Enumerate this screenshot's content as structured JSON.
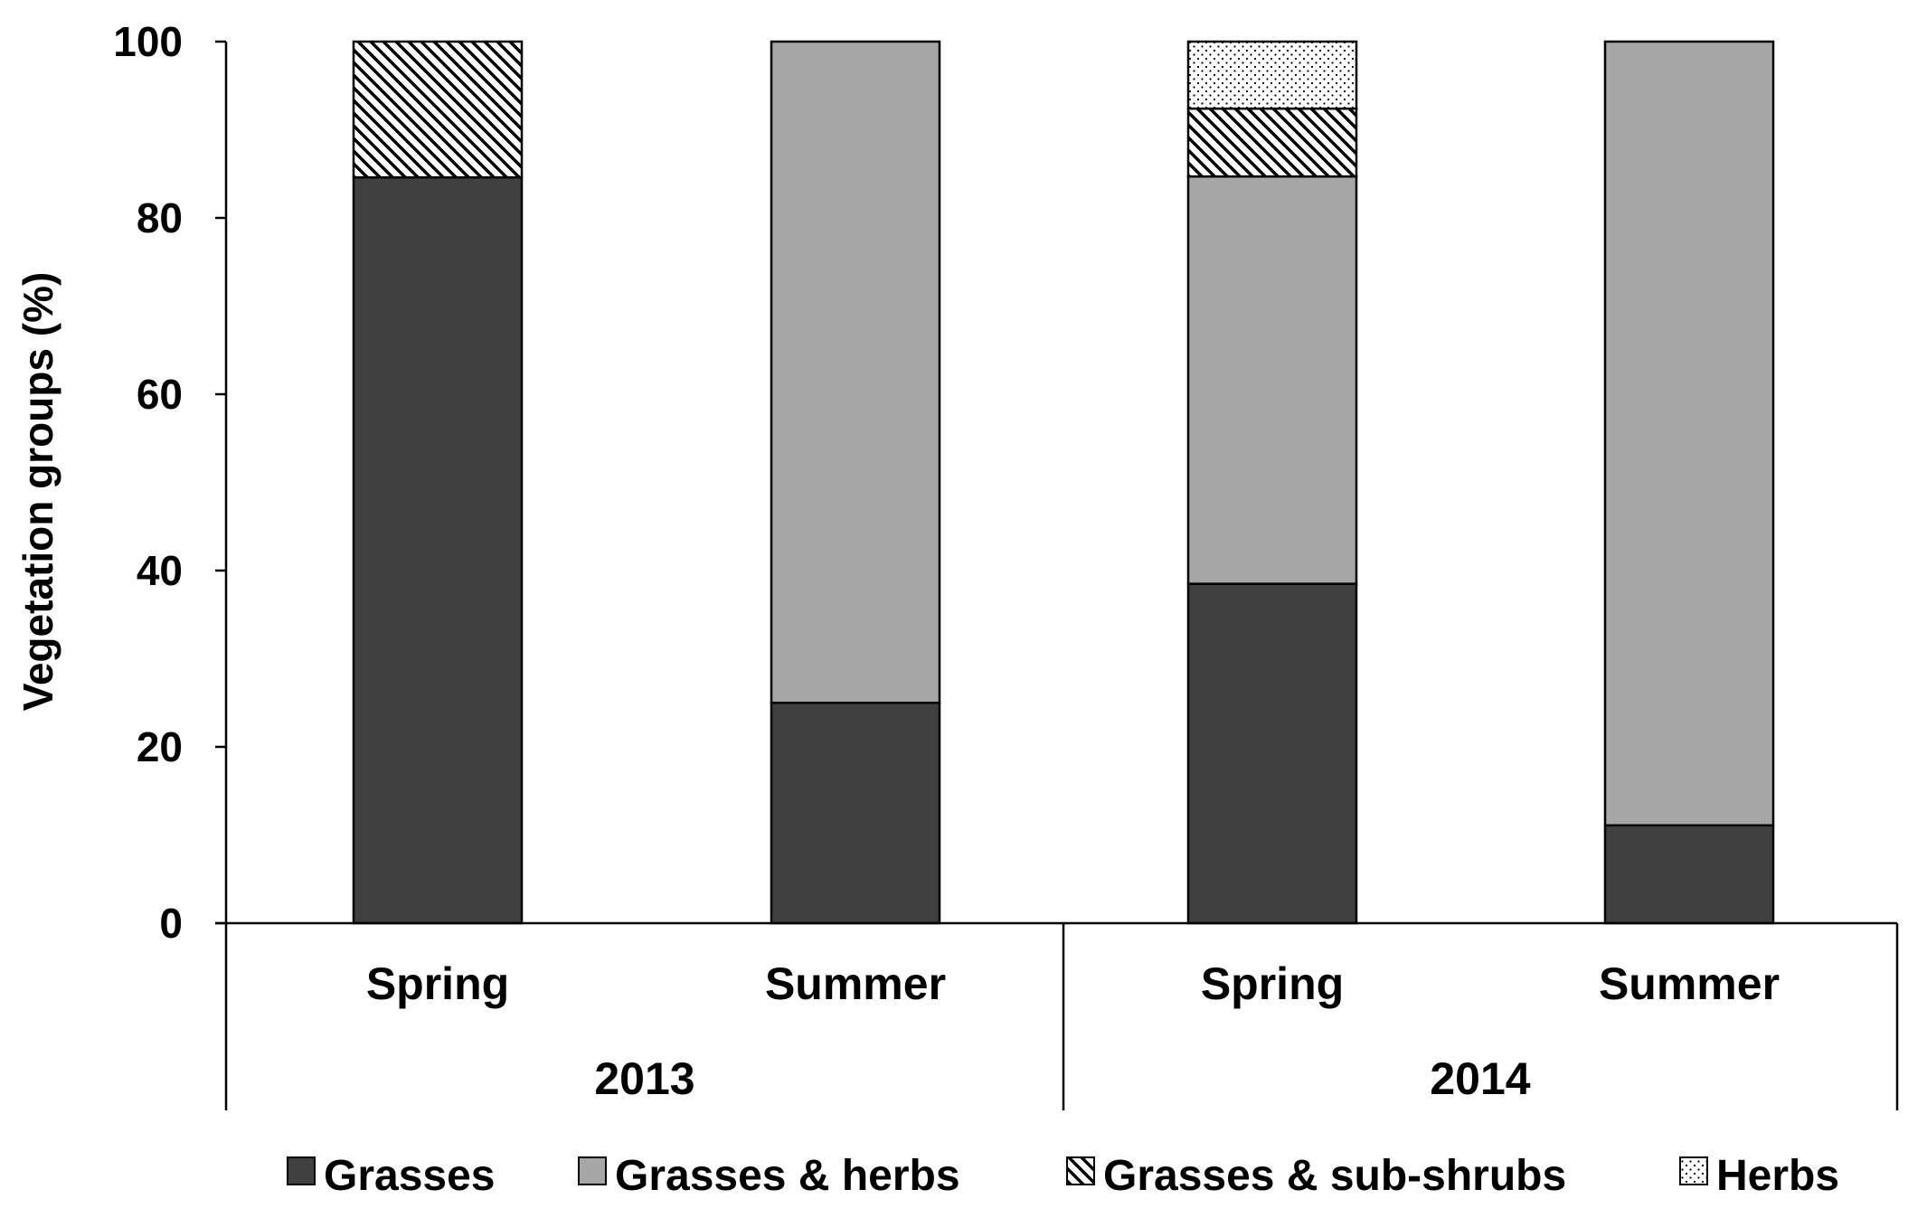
{
  "chart_data": {
    "type": "bar",
    "stacked": true,
    "ylabel": "Vegetation groups (%)",
    "ylim": [
      0,
      100
    ],
    "yticks": [
      0,
      20,
      40,
      60,
      80,
      100
    ],
    "grid": false,
    "legend_position": "bottom",
    "groups": [
      {
        "label": "2013",
        "categories": [
          "Spring",
          "Summer"
        ]
      },
      {
        "label": "2014",
        "categories": [
          "Spring",
          "Summer"
        ]
      }
    ],
    "categories": [
      "Spring",
      "Summer",
      "Spring",
      "Summer"
    ],
    "series": [
      {
        "name": "Grasses",
        "values": [
          84.6,
          25,
          38.5,
          11.1
        ],
        "color": "#404040",
        "pattern": "solid"
      },
      {
        "name": "Grasses & herbs",
        "values": [
          0,
          75,
          46.2,
          88.9
        ],
        "color": "#a6a6a6",
        "pattern": "solid"
      },
      {
        "name": "Grasses & sub-shrubs",
        "values": [
          15.4,
          0,
          7.7,
          0
        ],
        "color": "#000000",
        "pattern": "diagonal-hatch"
      },
      {
        "name": "Herbs",
        "values": [
          0,
          0,
          7.6,
          0
        ],
        "color": "#000000",
        "pattern": "dots"
      }
    ]
  }
}
